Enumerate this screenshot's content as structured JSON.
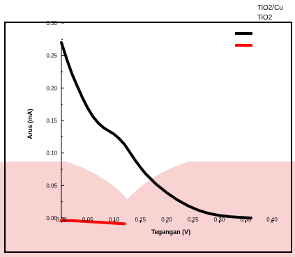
{
  "chart_data": {
    "type": "line",
    "xlabel": "Tegangan  (V)",
    "ylabel": "Arus (mA)",
    "xlim": [
      0,
      0.4
    ],
    "ylim": [
      0,
      0.3
    ],
    "x_ticks": [
      "0.00",
      "0.05",
      "0.10",
      "0.15",
      "0.20",
      "0.25",
      "0.30",
      "0.35",
      "0.40"
    ],
    "y_ticks": [
      "0.00",
      "0.05",
      "0.10",
      "0.15",
      "0.20",
      "0.25",
      "0.30"
    ],
    "legend_position": "top-right",
    "series": [
      {
        "name": "TiO2/Cu",
        "color": "#000000",
        "x": [
          0.0,
          0.01,
          0.02,
          0.03,
          0.04,
          0.05,
          0.06,
          0.07,
          0.08,
          0.09,
          0.1,
          0.11,
          0.12,
          0.13,
          0.14,
          0.15,
          0.16,
          0.18,
          0.2,
          0.22,
          0.24,
          0.26,
          0.28,
          0.3,
          0.32,
          0.34,
          0.36
        ],
        "values": [
          0.27,
          0.245,
          0.222,
          0.203,
          0.185,
          0.169,
          0.156,
          0.146,
          0.139,
          0.134,
          0.129,
          0.122,
          0.113,
          0.101,
          0.089,
          0.078,
          0.068,
          0.052,
          0.039,
          0.028,
          0.019,
          0.012,
          0.007,
          0.004,
          0.002,
          0.001,
          0.0
        ]
      },
      {
        "name": "TiO2",
        "color": "#ff0000",
        "x": [
          0.0,
          0.02,
          0.04,
          0.06,
          0.08,
          0.1,
          0.12
        ],
        "values": [
          -0.004,
          -0.004,
          -0.005,
          -0.006,
          -0.007,
          -0.008,
          -0.009
        ]
      }
    ]
  },
  "colors": {
    "background_shape": "#f9d2d2",
    "axis": "#000000"
  }
}
